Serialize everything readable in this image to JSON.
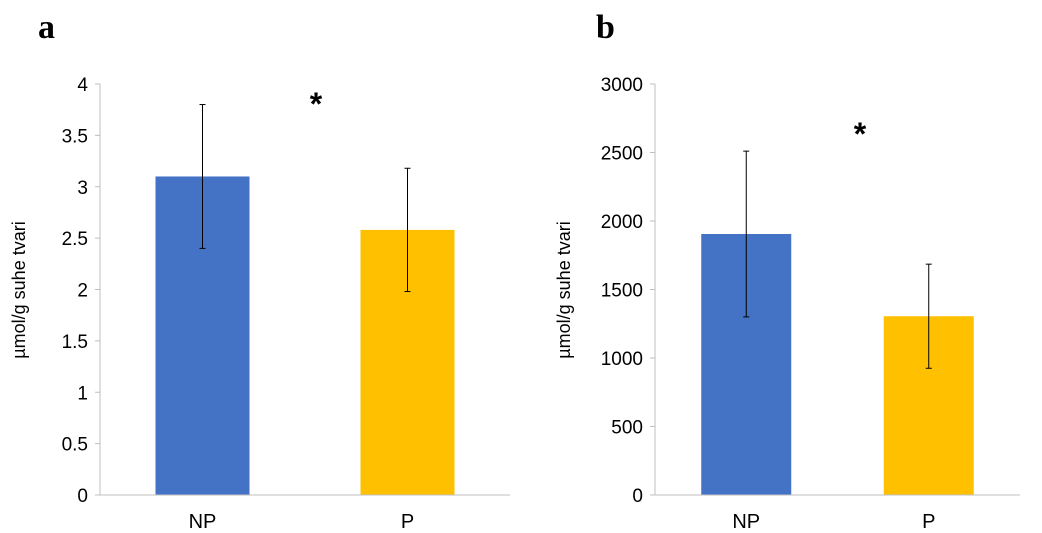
{
  "chart_data": [
    {
      "type": "bar",
      "panel_label": "a",
      "categories": [
        "NP",
        "P"
      ],
      "values": [
        3.1,
        2.58
      ],
      "error": [
        0.7,
        0.6
      ],
      "colors": [
        "#4472C4",
        "#FFC000"
      ],
      "ylabel": "µmol/g suhe tvari",
      "ylim": [
        0,
        4
      ],
      "yticks": [
        "0",
        "0.5",
        "1",
        "1.5",
        "2",
        "2.5",
        "3",
        "3.5",
        "4"
      ],
      "annotation": "*",
      "grid": false
    },
    {
      "type": "bar",
      "panel_label": "b",
      "categories": [
        "NP",
        "P"
      ],
      "values": [
        1905,
        1305
      ],
      "error": [
        605,
        380
      ],
      "colors": [
        "#4472C4",
        "#FFC000"
      ],
      "ylabel": "µmol/g suhe tvari",
      "ylim": [
        0,
        3000
      ],
      "yticks": [
        "0",
        "500",
        "1000",
        "1500",
        "2000",
        "2500",
        "3000"
      ],
      "annotation": "*",
      "grid": false
    }
  ]
}
